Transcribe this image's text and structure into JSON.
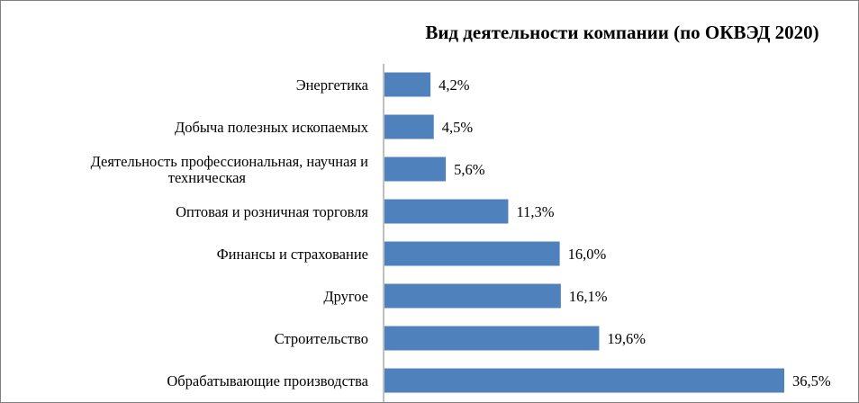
{
  "chart_data": {
    "type": "bar",
    "orientation": "horizontal",
    "title": "Вид деятельности компании (по ОКВЭД 2020)",
    "categories": [
      "Энергетика",
      "Добыча полезных ископаемых",
      "Деятельность профессиональная, научная и техническая",
      "Оптовая и розничная торговля",
      "Финансы и страхование",
      "Другое",
      "Строительство",
      "Обрабатывающие производства"
    ],
    "category_lines": [
      [
        "Энергетика"
      ],
      [
        "Добыча полезных ископаемых"
      ],
      [
        "Деятельность профессиональная, научная и",
        "техническая"
      ],
      [
        "Оптовая и розничная торговля"
      ],
      [
        "Финансы и страхование"
      ],
      [
        "Другое"
      ],
      [
        "Строительство"
      ],
      [
        "Обрабатывающие производства"
      ]
    ],
    "values": [
      4.2,
      4.5,
      5.6,
      11.3,
      16.0,
      16.1,
      19.6,
      36.5
    ],
    "value_labels": [
      "4,2%",
      "4,5%",
      "5,6%",
      "11,3%",
      "16,0%",
      "16,1%",
      "19,6%",
      "36,5%"
    ],
    "xlim": [
      0,
      37
    ],
    "bar_color": "#4f81bd",
    "axis_color": "#7f7f7f",
    "grid": false,
    "legend": "none"
  }
}
